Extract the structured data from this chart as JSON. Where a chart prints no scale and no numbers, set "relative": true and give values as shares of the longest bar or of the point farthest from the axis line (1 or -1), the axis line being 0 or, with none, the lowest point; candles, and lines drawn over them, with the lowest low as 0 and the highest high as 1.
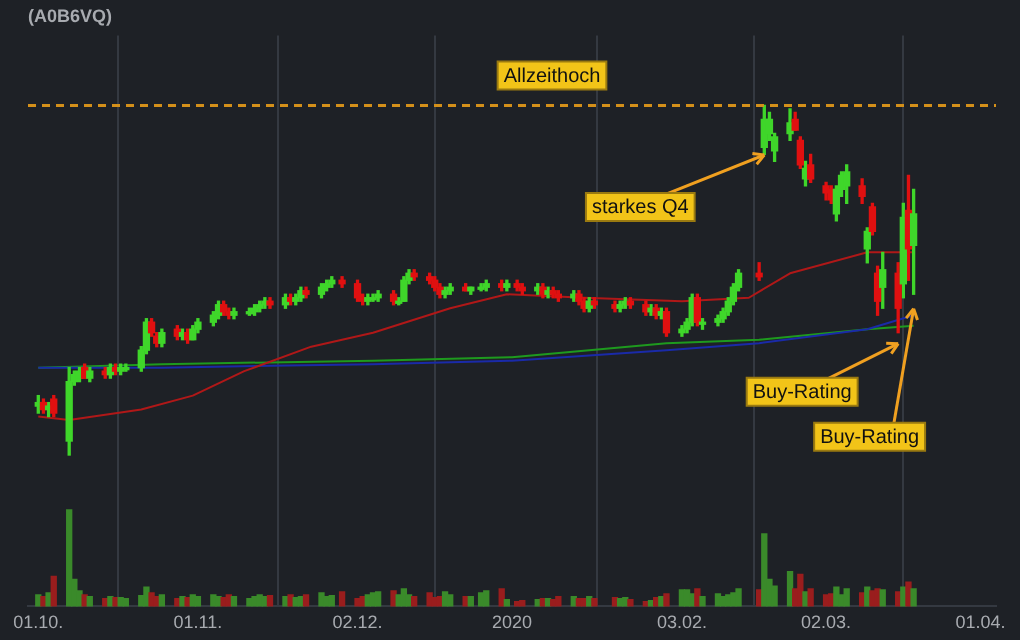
{
  "chart_data": [
    {
      "type": "candlestick",
      "title": "(A0B6VQ)",
      "relative": true,
      "grid": "x",
      "tick_labels": false,
      "xlim": [
        "2019-09-29",
        "2020-04-04"
      ],
      "xticks": [
        {
          "value": "2019-10-01",
          "label": null
        },
        {
          "value": "2019-11-01",
          "label": null
        },
        {
          "value": "2019-12-02",
          "label": null
        },
        {
          "value": "2020-01-01",
          "label": null
        },
        {
          "value": "2020-02-03",
          "label": null
        },
        {
          "value": "2020-03-02",
          "label": null
        },
        {
          "value": "2020-04-01",
          "label": null
        }
      ],
      "x": [
        "2019-10-01",
        "2019-10-02",
        "2019-10-03",
        "2019-10-04",
        "2019-10-07",
        "2019-10-08",
        "2019-10-09",
        "2019-10-10",
        "2019-10-11",
        "2019-10-14",
        "2019-10-15",
        "2019-10-16",
        "2019-10-17",
        "2019-10-18",
        "2019-10-21",
        "2019-10-22",
        "2019-10-23",
        "2019-10-24",
        "2019-10-25",
        "2019-10-28",
        "2019-10-29",
        "2019-10-30",
        "2019-10-31",
        "2019-11-01",
        "2019-11-04",
        "2019-11-05",
        "2019-11-06",
        "2019-11-07",
        "2019-11-08",
        "2019-11-11",
        "2019-11-12",
        "2019-11-13",
        "2019-11-14",
        "2019-11-15",
        "2019-11-18",
        "2019-11-19",
        "2019-11-20",
        "2019-11-21",
        "2019-11-22",
        "2019-11-25",
        "2019-11-26",
        "2019-11-27",
        "2019-11-29",
        "2019-12-02",
        "2019-12-03",
        "2019-12-04",
        "2019-12-05",
        "2019-12-06",
        "2019-12-09",
        "2019-12-10",
        "2019-12-11",
        "2019-12-12",
        "2019-12-13",
        "2019-12-16",
        "2019-12-17",
        "2019-12-18",
        "2019-12-19",
        "2019-12-20",
        "2019-12-23",
        "2019-12-24",
        "2019-12-26",
        "2019-12-27",
        "2019-12-30",
        "2019-12-31",
        "2020-01-02",
        "2020-01-03",
        "2020-01-06",
        "2020-01-07",
        "2020-01-08",
        "2020-01-09",
        "2020-01-10",
        "2020-01-13",
        "2020-01-14",
        "2020-01-15",
        "2020-01-16",
        "2020-01-17",
        "2020-01-21",
        "2020-01-22",
        "2020-01-23",
        "2020-01-24",
        "2020-01-27",
        "2020-01-28",
        "2020-01-29",
        "2020-01-30",
        "2020-01-31",
        "2020-02-03",
        "2020-02-04",
        "2020-02-05",
        "2020-02-06",
        "2020-02-07",
        "2020-02-10",
        "2020-02-11",
        "2020-02-12",
        "2020-02-13",
        "2020-02-14",
        "2020-02-18",
        "2020-02-19",
        "2020-02-20",
        "2020-02-21",
        "2020-02-24",
        "2020-02-25",
        "2020-02-26",
        "2020-02-27",
        "2020-02-28",
        "2020-03-02",
        "2020-03-03",
        "2020-03-04",
        "2020-03-05",
        "2020-03-06",
        "2020-03-09",
        "2020-03-10",
        "2020-03-11",
        "2020-03-12",
        "2020-03-13",
        "2020-03-16",
        "2020-03-17",
        "2020-03-18",
        "2020-03-19"
      ],
      "ohlc": [
        [
          0.14,
          0.17,
          0.12,
          0.15
        ],
        [
          0.15,
          0.16,
          0.12,
          0.13
        ],
        [
          0.13,
          0.15,
          0.11,
          0.14
        ],
        [
          0.16,
          0.17,
          0.11,
          0.12
        ],
        [
          0.04,
          0.25,
          0,
          0.21
        ],
        [
          0.21,
          0.24,
          0.2,
          0.23
        ],
        [
          0.22,
          0.25,
          0.21,
          0.24
        ],
        [
          0.25,
          0.26,
          0.22,
          0.22
        ],
        [
          0.22,
          0.25,
          0.21,
          0.24
        ],
        [
          0.24,
          0.25,
          0.22,
          0.23
        ],
        [
          0.23,
          0.26,
          0.22,
          0.25
        ],
        [
          0.25,
          0.26,
          0.23,
          0.24
        ],
        [
          0.24,
          0.26,
          0.23,
          0.25
        ],
        [
          0.25,
          0.26,
          0.24,
          0.25
        ],
        [
          0.25,
          0.31,
          0.24,
          0.3
        ],
        [
          0.3,
          0.39,
          0.29,
          0.38
        ],
        [
          0.38,
          0.39,
          0.34,
          0.35
        ],
        [
          0.34,
          0.35,
          0.31,
          0.32
        ],
        [
          0.32,
          0.36,
          0.31,
          0.35
        ],
        [
          0.36,
          0.37,
          0.33,
          0.34
        ],
        [
          0.34,
          0.36,
          0.33,
          0.35
        ],
        [
          0.35,
          0.36,
          0.32,
          0.33
        ],
        [
          0.33,
          0.37,
          0.33,
          0.36
        ],
        [
          0.36,
          0.39,
          0.35,
          0.38
        ],
        [
          0.38,
          0.41,
          0.37,
          0.4
        ],
        [
          0.4,
          0.44,
          0.39,
          0.43
        ],
        [
          0.43,
          0.44,
          0.4,
          0.41
        ],
        [
          0.41,
          0.42,
          0.39,
          0.4
        ],
        [
          0.4,
          0.42,
          0.39,
          0.41
        ],
        [
          0.41,
          0.42,
          0.4,
          0.41
        ],
        [
          0.41,
          0.43,
          0.4,
          0.42
        ],
        [
          0.42,
          0.44,
          0.41,
          0.43
        ],
        [
          0.43,
          0.45,
          0.42,
          0.44
        ],
        [
          0.44,
          0.45,
          0.42,
          0.43
        ],
        [
          0.43,
          0.46,
          0.42,
          0.45
        ],
        [
          0.45,
          0.46,
          0.43,
          0.44
        ],
        [
          0.44,
          0.46,
          0.43,
          0.45
        ],
        [
          0.45,
          0.48,
          0.44,
          0.47
        ],
        [
          0.47,
          0.48,
          0.45,
          0.46
        ],
        [
          0.46,
          0.49,
          0.45,
          0.48
        ],
        [
          0.48,
          0.5,
          0.47,
          0.49
        ],
        [
          0.49,
          0.51,
          0.48,
          0.5
        ],
        [
          0.5,
          0.51,
          0.48,
          0.49
        ],
        [
          0.49,
          0.5,
          0.44,
          0.45
        ],
        [
          0.45,
          0.46,
          0.43,
          0.44
        ],
        [
          0.44,
          0.46,
          0.43,
          0.45
        ],
        [
          0.45,
          0.46,
          0.44,
          0.45
        ],
        [
          0.45,
          0.47,
          0.44,
          0.46
        ],
        [
          0.46,
          0.47,
          0.43,
          0.44
        ],
        [
          0.44,
          0.45,
          0.43,
          0.44
        ],
        [
          0.44,
          0.51,
          0.44,
          0.5
        ],
        [
          0.5,
          0.53,
          0.49,
          0.52
        ],
        [
          0.52,
          0.53,
          0.5,
          0.51
        ],
        [
          0.51,
          0.52,
          0.49,
          0.5
        ],
        [
          0.5,
          0.51,
          0.47,
          0.48
        ],
        [
          0.48,
          0.49,
          0.45,
          0.46
        ],
        [
          0.46,
          0.48,
          0.45,
          0.47
        ],
        [
          0.47,
          0.49,
          0.46,
          0.48
        ],
        [
          0.48,
          0.49,
          0.47,
          0.47
        ],
        [
          0.47,
          0.48,
          0.46,
          0.48
        ],
        [
          0.48,
          0.49,
          0.47,
          0.48
        ],
        [
          0.48,
          0.5,
          0.47,
          0.49
        ],
        [
          0.49,
          0.5,
          0.47,
          0.48
        ],
        [
          0.48,
          0.5,
          0.47,
          0.49
        ],
        [
          0.49,
          0.5,
          0.47,
          0.48
        ],
        [
          0.48,
          0.49,
          0.46,
          0.47
        ],
        [
          0.47,
          0.49,
          0.46,
          0.48
        ],
        [
          0.48,
          0.49,
          0.45,
          0.46
        ],
        [
          0.46,
          0.48,
          0.45,
          0.47
        ],
        [
          0.47,
          0.48,
          0.45,
          0.46
        ],
        [
          0.46,
          0.47,
          0.44,
          0.45
        ],
        [
          0.45,
          0.47,
          0.44,
          0.46
        ],
        [
          0.46,
          0.47,
          0.43,
          0.44
        ],
        [
          0.44,
          0.45,
          0.41,
          0.42
        ],
        [
          0.42,
          0.45,
          0.41,
          0.44
        ],
        [
          0.44,
          0.45,
          0.42,
          0.43
        ],
        [
          0.43,
          0.44,
          0.41,
          0.42
        ],
        [
          0.42,
          0.44,
          0.41,
          0.43
        ],
        [
          0.43,
          0.45,
          0.42,
          0.44
        ],
        [
          0.44,
          0.45,
          0.42,
          0.43
        ],
        [
          0.43,
          0.44,
          0.4,
          0.41
        ],
        [
          0.41,
          0.43,
          0.4,
          0.42
        ],
        [
          0.42,
          0.43,
          0.39,
          0.4
        ],
        [
          0.4,
          0.42,
          0.39,
          0.41
        ],
        [
          0.41,
          0.42,
          0.34,
          0.35
        ],
        [
          0.35,
          0.37,
          0.34,
          0.36
        ],
        [
          0.36,
          0.39,
          0.35,
          0.38
        ],
        [
          0.38,
          0.46,
          0.37,
          0.45
        ],
        [
          0.45,
          0.46,
          0.37,
          0.38
        ],
        [
          0.38,
          0.39,
          0.36,
          0.38
        ],
        [
          0.38,
          0.4,
          0.37,
          0.39
        ],
        [
          0.39,
          0.42,
          0.38,
          0.41
        ],
        [
          0.41,
          0.45,
          0.4,
          0.44
        ],
        [
          0.44,
          0.49,
          0.43,
          0.48
        ],
        [
          0.48,
          0.53,
          0.47,
          0.52
        ],
        [
          0.52,
          0.55,
          0.5,
          0.51
        ],
        [
          0.88,
          1,
          0.86,
          0.96
        ],
        [
          0.92,
          0.98,
          0.9,
          0.96
        ],
        [
          0.87,
          0.92,
          0.84,
          0.91
        ],
        [
          0.92,
          0.99,
          0.9,
          0.95
        ],
        [
          0.96,
          0.98,
          0.93,
          0.93
        ],
        [
          0.9,
          0.91,
          0.82,
          0.83
        ],
        [
          0.79,
          0.84,
          0.77,
          0.82
        ],
        [
          0.83,
          0.86,
          0.78,
          0.79
        ],
        [
          0.77,
          0.78,
          0.73,
          0.75
        ],
        [
          0.76,
          0.77,
          0.72,
          0.73
        ],
        [
          0.69,
          0.77,
          0.67,
          0.76
        ],
        [
          0.76,
          0.81,
          0.74,
          0.8
        ],
        [
          0.77,
          0.83,
          0.72,
          0.81
        ],
        [
          0.77,
          0.79,
          0.72,
          0.74
        ],
        [
          0.59,
          0.65,
          0.55,
          0.64
        ],
        [
          0.71,
          0.72,
          0.63,
          0.64
        ],
        [
          0.52,
          0.54,
          0.4,
          0.44
        ],
        [
          0.48,
          0.58,
          0.42,
          0.53
        ],
        [
          0.52,
          0.55,
          0.35,
          0.42
        ],
        [
          0.49,
          0.72,
          0.45,
          0.68
        ],
        [
          0.7,
          0.8,
          0.5,
          0.59
        ],
        [
          0.6,
          0.76,
          0.46,
          0.69
        ]
      ],
      "colors": [
        "#3fd62a",
        "#e01010",
        "#3fd62a",
        "#e01010",
        "#3fd62a",
        "#3fd62a",
        "#3fd62a",
        "#e01010",
        "#3fd62a",
        "#e01010",
        "#3fd62a",
        "#e01010",
        "#3fd62a",
        "#3fd62a",
        "#3fd62a",
        "#3fd62a",
        "#e01010",
        "#e01010",
        "#3fd62a",
        "#e01010",
        "#3fd62a",
        "#e01010",
        "#3fd62a",
        "#3fd62a",
        "#3fd62a",
        "#3fd62a",
        "#e01010",
        "#e01010",
        "#3fd62a",
        "#3fd62a",
        "#3fd62a",
        "#3fd62a",
        "#3fd62a",
        "#e01010",
        "#3fd62a",
        "#e01010",
        "#3fd62a",
        "#3fd62a",
        "#e01010",
        "#3fd62a",
        "#3fd62a",
        "#3fd62a",
        "#e01010",
        "#e01010",
        "#e01010",
        "#3fd62a",
        "#3fd62a",
        "#3fd62a",
        "#e01010",
        "#3fd62a",
        "#3fd62a",
        "#3fd62a",
        "#e01010",
        "#e01010",
        "#e01010",
        "#e01010",
        "#3fd62a",
        "#3fd62a",
        "#e01010",
        "#3fd62a",
        "#3fd62a",
        "#3fd62a",
        "#e01010",
        "#3fd62a",
        "#e01010",
        "#e01010",
        "#3fd62a",
        "#e01010",
        "#3fd62a",
        "#e01010",
        "#e01010",
        "#3fd62a",
        "#e01010",
        "#e01010",
        "#3fd62a",
        "#e01010",
        "#e01010",
        "#3fd62a",
        "#3fd62a",
        "#e01010",
        "#e01010",
        "#3fd62a",
        "#e01010",
        "#3fd62a",
        "#e01010",
        "#3fd62a",
        "#3fd62a",
        "#3fd62a",
        "#e01010",
        "#3fd62a",
        "#3fd62a",
        "#3fd62a",
        "#3fd62a",
        "#3fd62a",
        "#3fd62a",
        "#e01010",
        "#3fd62a",
        "#3fd62a",
        "#3fd62a",
        "#3fd62a",
        "#e01010",
        "#e01010",
        "#3fd62a",
        "#e01010",
        "#e01010",
        "#e01010",
        "#3fd62a",
        "#3fd62a",
        "#3fd62a",
        "#e01010",
        "#3fd62a",
        "#e01010",
        "#e01010",
        "#3fd62a",
        "#e01010",
        "#3fd62a",
        "#e01010",
        "#3fd62a"
      ],
      "series": [
        {
          "type": "line",
          "color": "#b01818",
          "x": [
            "2019-10-01",
            "2019-10-07",
            "2019-10-21",
            "2019-10-31",
            "2019-11-10",
            "2019-11-23",
            "2019-12-05",
            "2019-12-20",
            "2019-12-31",
            "2020-01-15",
            "2020-02-03",
            "2020-02-16",
            "2020-02-24",
            "2020-03-10",
            "2020-03-19"
          ],
          "values": [
            0.11,
            0.1,
            0.13,
            0.17,
            0.24,
            0.31,
            0.35,
            0.42,
            0.46,
            0.45,
            0.44,
            0.45,
            0.52,
            0.58,
            0.58
          ]
        },
        {
          "type": "line",
          "color": "#1a2aa8",
          "x": [
            "2019-10-01",
            "2019-10-25",
            "2019-12-05",
            "2020-01-01",
            "2020-01-31",
            "2020-02-18",
            "2020-03-10",
            "2020-03-19"
          ],
          "values": [
            0.25,
            0.25,
            0.26,
            0.27,
            0.3,
            0.32,
            0.36,
            0.4
          ]
        },
        {
          "type": "line",
          "color": "#1e9a1e",
          "x": [
            "2019-10-01",
            "2019-10-25",
            "2019-12-05",
            "2020-01-01",
            "2020-01-31",
            "2020-02-18",
            "2020-03-10",
            "2020-03-19"
          ],
          "values": [
            0.25,
            0.26,
            0.27,
            0.28,
            0.32,
            0.33,
            0.36,
            0.37
          ]
        }
      ],
      "ref_lines": [
        {
          "axis": "y",
          "value": 1,
          "label": "Allzeithoch",
          "color": "#d4901a",
          "line_style": "dashed"
        }
      ],
      "annotations": [
        {
          "text": "starkes Q4",
          "x": "2020-02-19",
          "y": 0.87
        },
        {
          "text": "Buy-Rating",
          "x": "2020-03-16",
          "y": 0.33
        },
        {
          "text": "Buy-Rating",
          "x": "2020-03-19",
          "y": 0.43
        }
      ]
    },
    {
      "type": "bar",
      "relative": true,
      "grid": "x",
      "tick_labels": "x",
      "xlim": [
        "2019-09-29",
        "2020-04-04"
      ],
      "xticks": [
        {
          "value": "2019-10-01",
          "label": "01.10."
        },
        {
          "value": "2019-11-01",
          "label": "01.11."
        },
        {
          "value": "2019-12-02",
          "label": "02.12."
        },
        {
          "value": "2020-01-01",
          "label": "2020"
        },
        {
          "value": "2020-02-03",
          "label": "03.02."
        },
        {
          "value": "2020-03-02",
          "label": "02.03."
        },
        {
          "value": "2020-04-01",
          "label": "01.04."
        }
      ],
      "x": [
        "2019-10-01",
        "2019-10-02",
        "2019-10-03",
        "2019-10-04",
        "2019-10-07",
        "2019-10-08",
        "2019-10-09",
        "2019-10-10",
        "2019-10-11",
        "2019-10-14",
        "2019-10-15",
        "2019-10-16",
        "2019-10-17",
        "2019-10-18",
        "2019-10-21",
        "2019-10-22",
        "2019-10-23",
        "2019-10-24",
        "2019-10-25",
        "2019-10-28",
        "2019-10-29",
        "2019-10-30",
        "2019-10-31",
        "2019-11-01",
        "2019-11-04",
        "2019-11-05",
        "2019-11-06",
        "2019-11-07",
        "2019-11-08",
        "2019-11-11",
        "2019-11-12",
        "2019-11-13",
        "2019-11-14",
        "2019-11-15",
        "2019-11-18",
        "2019-11-19",
        "2019-11-20",
        "2019-11-21",
        "2019-11-22",
        "2019-11-25",
        "2019-11-26",
        "2019-11-27",
        "2019-11-29",
        "2019-12-02",
        "2019-12-03",
        "2019-12-04",
        "2019-12-05",
        "2019-12-06",
        "2019-12-09",
        "2019-12-10",
        "2019-12-11",
        "2019-12-12",
        "2019-12-13",
        "2019-12-16",
        "2019-12-17",
        "2019-12-18",
        "2019-12-19",
        "2019-12-20",
        "2019-12-23",
        "2019-12-24",
        "2019-12-26",
        "2019-12-27",
        "2019-12-30",
        "2019-12-31",
        "2020-01-02",
        "2020-01-03",
        "2020-01-06",
        "2020-01-07",
        "2020-01-08",
        "2020-01-09",
        "2020-01-10",
        "2020-01-13",
        "2020-01-14",
        "2020-01-15",
        "2020-01-16",
        "2020-01-17",
        "2020-01-21",
        "2020-01-22",
        "2020-01-23",
        "2020-01-24",
        "2020-01-27",
        "2020-01-28",
        "2020-01-29",
        "2020-01-30",
        "2020-01-31",
        "2020-02-03",
        "2020-02-04",
        "2020-02-05",
        "2020-02-06",
        "2020-02-07",
        "2020-02-10",
        "2020-02-11",
        "2020-02-12",
        "2020-02-13",
        "2020-02-14",
        "2020-02-18",
        "2020-02-19",
        "2020-02-20",
        "2020-02-21",
        "2020-02-24",
        "2020-02-25",
        "2020-02-26",
        "2020-02-27",
        "2020-02-28",
        "2020-03-02",
        "2020-03-03",
        "2020-03-04",
        "2020-03-05",
        "2020-03-06",
        "2020-03-09",
        "2020-03-10",
        "2020-03-11",
        "2020-03-12",
        "2020-03-13",
        "2020-03-16",
        "2020-03-17",
        "2020-03-18",
        "2020-03-19"
      ],
      "values": [
        0.12,
        0.1,
        0.14,
        0.31,
        1.0,
        0.28,
        0.16,
        0.12,
        0.1,
        0.08,
        0.1,
        0.09,
        0.09,
        0.08,
        0.11,
        0.2,
        0.14,
        0.1,
        0.12,
        0.08,
        0.1,
        0.09,
        0.12,
        0.1,
        0.12,
        0.1,
        0.09,
        0.12,
        0.1,
        0.08,
        0.1,
        0.12,
        0.1,
        0.11,
        0.1,
        0.12,
        0.09,
        0.1,
        0.12,
        0.14,
        0.1,
        0.11,
        0.15,
        0.08,
        0.1,
        0.12,
        0.14,
        0.15,
        0.16,
        0.12,
        0.18,
        0.12,
        0.1,
        0.14,
        0.09,
        0.1,
        0.15,
        0.12,
        0.1,
        0.1,
        0.14,
        0.16,
        0.18,
        0.07,
        0.05,
        0.06,
        0.07,
        0.08,
        0.08,
        0.07,
        0.1,
        0.1,
        0.08,
        0.08,
        0.1,
        0.08,
        0.09,
        0.08,
        0.09,
        0.07,
        0.05,
        0.06,
        0.09,
        0.1,
        0.13,
        0.17,
        0.17,
        0.13,
        0.18,
        0.1,
        0.13,
        0.1,
        0.12,
        0.14,
        0.18,
        0.17,
        0.75,
        0.28,
        0.21,
        0.36,
        0.18,
        0.33,
        0.15,
        0.18,
        0.12,
        0.13,
        0.2,
        0.12,
        0.18,
        0.14,
        0.2,
        0.16,
        0.18,
        0.17,
        0.15,
        0.2,
        0.25,
        0.18
      ],
      "colors": [
        "#3a8a2a",
        "#9a1d1d",
        "#3a8a2a",
        "#9a1d1d",
        "#3a8a2a",
        "#3a8a2a",
        "#3a8a2a",
        "#9a1d1d",
        "#3a8a2a",
        "#9a1d1d",
        "#3a8a2a",
        "#9a1d1d",
        "#3a8a2a",
        "#3a8a2a",
        "#3a8a2a",
        "#3a8a2a",
        "#9a1d1d",
        "#9a1d1d",
        "#3a8a2a",
        "#9a1d1d",
        "#3a8a2a",
        "#9a1d1d",
        "#3a8a2a",
        "#3a8a2a",
        "#3a8a2a",
        "#3a8a2a",
        "#9a1d1d",
        "#9a1d1d",
        "#3a8a2a",
        "#3a8a2a",
        "#3a8a2a",
        "#3a8a2a",
        "#3a8a2a",
        "#9a1d1d",
        "#3a8a2a",
        "#9a1d1d",
        "#3a8a2a",
        "#3a8a2a",
        "#9a1d1d",
        "#3a8a2a",
        "#3a8a2a",
        "#3a8a2a",
        "#9a1d1d",
        "#9a1d1d",
        "#9a1d1d",
        "#3a8a2a",
        "#3a8a2a",
        "#3a8a2a",
        "#9a1d1d",
        "#3a8a2a",
        "#3a8a2a",
        "#3a8a2a",
        "#9a1d1d",
        "#9a1d1d",
        "#9a1d1d",
        "#9a1d1d",
        "#3a8a2a",
        "#3a8a2a",
        "#9a1d1d",
        "#3a8a2a",
        "#3a8a2a",
        "#3a8a2a",
        "#9a1d1d",
        "#3a8a2a",
        "#9a1d1d",
        "#9a1d1d",
        "#3a8a2a",
        "#9a1d1d",
        "#3a8a2a",
        "#9a1d1d",
        "#9a1d1d",
        "#3a8a2a",
        "#9a1d1d",
        "#9a1d1d",
        "#3a8a2a",
        "#9a1d1d",
        "#9a1d1d",
        "#3a8a2a",
        "#3a8a2a",
        "#9a1d1d",
        "#9a1d1d",
        "#3a8a2a",
        "#9a1d1d",
        "#3a8a2a",
        "#9a1d1d",
        "#3a8a2a",
        "#3a8a2a",
        "#3a8a2a",
        "#9a1d1d",
        "#3a8a2a",
        "#3a8a2a",
        "#3a8a2a",
        "#3a8a2a",
        "#3a8a2a",
        "#3a8a2a",
        "#9a1d1d",
        "#3a8a2a",
        "#3a8a2a",
        "#3a8a2a",
        "#3a8a2a",
        "#9a1d1d",
        "#9a1d1d",
        "#3a8a2a",
        "#9a1d1d",
        "#9a1d1d",
        "#9a1d1d",
        "#3a8a2a",
        "#3a8a2a",
        "#3a8a2a",
        "#9a1d1d",
        "#3a8a2a",
        "#9a1d1d",
        "#9a1d1d",
        "#3a8a2a",
        "#9a1d1d",
        "#3a8a2a",
        "#9a1d1d",
        "#3a8a2a"
      ]
    }
  ]
}
